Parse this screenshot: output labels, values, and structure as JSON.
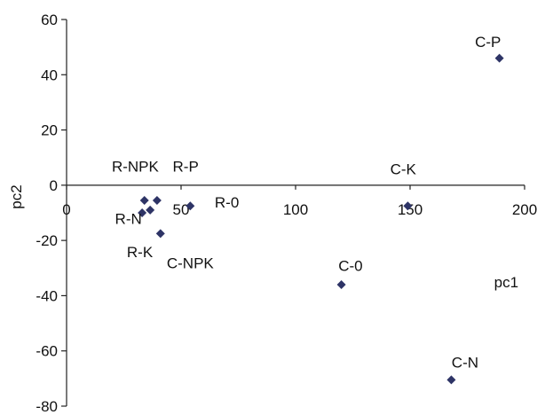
{
  "chart_data": {
    "type": "scatter",
    "xlabel": "pc1",
    "ylabel": "pc2",
    "xlim": [
      0,
      200
    ],
    "ylim": [
      -80,
      60
    ],
    "x_ticks": [
      "0",
      "50",
      "100",
      "150",
      "200"
    ],
    "y_ticks": [
      "60",
      "40",
      "20",
      "0",
      "-20",
      "-40",
      "-60",
      "-80"
    ],
    "marker_color": "#2e3466",
    "points": [
      {
        "x": 34,
        "y": -5.5
      },
      {
        "x": 39.5,
        "y": -5.5
      },
      {
        "x": 36.5,
        "y": -9
      },
      {
        "x": 33,
        "y": -10
      },
      {
        "x": 41,
        "y": -17.5
      },
      {
        "x": 54,
        "y": -7.5
      },
      {
        "x": 120,
        "y": -36
      },
      {
        "x": 149,
        "y": -7.5
      },
      {
        "x": 168,
        "y": -70.5
      },
      {
        "x": 189,
        "y": 46
      }
    ],
    "labels": [
      {
        "text": "R-NPK",
        "x": 30,
        "y": 5
      },
      {
        "text": "R-P",
        "x": 52,
        "y": 5
      },
      {
        "text": "R-N",
        "x": 27,
        "y": -14
      },
      {
        "text": "R-0",
        "x": 70,
        "y": -8
      },
      {
        "text": "R-K",
        "x": 32,
        "y": -26
      },
      {
        "text": "C-NPK",
        "x": 54,
        "y": -30
      },
      {
        "text": "C-0",
        "x": 124,
        "y": -31
      },
      {
        "text": "C-K",
        "x": 147,
        "y": 4
      },
      {
        "text": "C-N",
        "x": 174,
        "y": -66
      },
      {
        "text": "C-P",
        "x": 184,
        "y": 50
      },
      {
        "text": "pc1",
        "x": 192,
        "y": -37
      }
    ]
  }
}
